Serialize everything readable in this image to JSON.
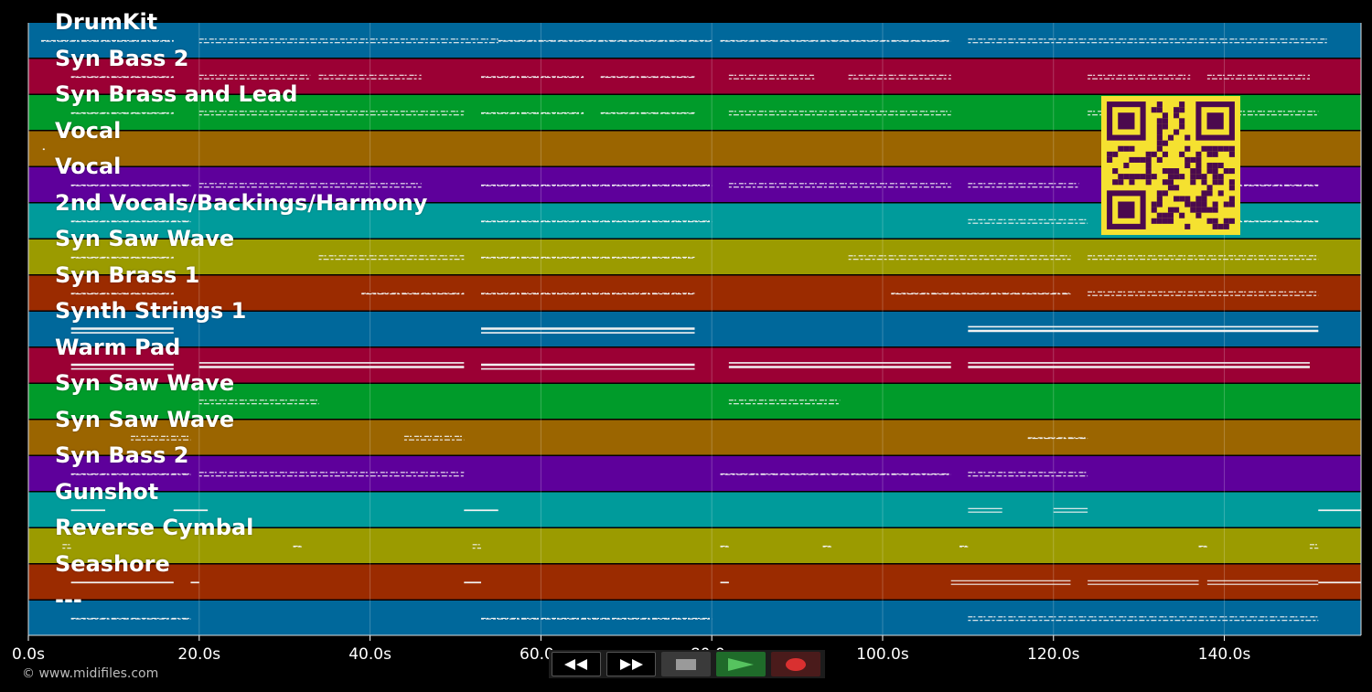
{
  "tracks": [
    {
      "name": "DrumKit",
      "color": "#00689b"
    },
    {
      "name": "Syn Bass 2",
      "color": "#9b0034"
    },
    {
      "name": "Syn Brass and Lead",
      "color": "#009b2a"
    },
    {
      "name": "Vocal",
      "color": "#9b6500"
    },
    {
      "name": "Vocal",
      "color": "#5e009b"
    },
    {
      "name": "2nd Vocals/Backings/Harmony",
      "color": "#009b9b"
    },
    {
      "name": "Syn Saw Wave",
      "color": "#9b9b00"
    },
    {
      "name": "Syn Brass 1",
      "color": "#9b2b00"
    },
    {
      "name": "Synth Strings 1",
      "color": "#00689b"
    },
    {
      "name": "Warm Pad",
      "color": "#9b0034"
    },
    {
      "name": "Syn Saw Wave",
      "color": "#009b2a"
    },
    {
      "name": "Syn Saw Wave",
      "color": "#9b6500"
    },
    {
      "name": "Syn Bass 2",
      "color": "#5e009b"
    },
    {
      "name": "Gunshot",
      "color": "#009b9b"
    },
    {
      "name": "Reverse Cymbal",
      "color": "#9b9b00"
    },
    {
      "name": "Seashore",
      "color": "#9b2b00"
    },
    {
      "name": "---",
      "color": "#00689b"
    }
  ],
  "timeline": {
    "max_seconds": 156,
    "ticks": [
      "0.0s",
      "20.0s",
      "40.0s",
      "60.0s",
      "80.0s",
      "100.0s",
      "120.0s",
      "140.0s"
    ],
    "tick_values": [
      0,
      20,
      40,
      60,
      80,
      100,
      120,
      140
    ]
  },
  "note_segments": [
    [
      [
        1.5,
        17
      ],
      [
        20,
        55
      ],
      [
        55,
        80
      ],
      [
        81,
        108
      ],
      [
        110,
        152
      ]
    ],
    [
      [
        5,
        17
      ],
      [
        20,
        33
      ],
      [
        34,
        46
      ],
      [
        53,
        65
      ],
      [
        67,
        78
      ],
      [
        82,
        92
      ],
      [
        96,
        108
      ],
      [
        124,
        136
      ],
      [
        138,
        150
      ]
    ],
    [
      [
        5,
        17
      ],
      [
        20,
        51
      ],
      [
        53,
        65
      ],
      [
        67,
        78
      ],
      [
        82,
        108
      ],
      [
        124,
        136
      ],
      [
        138,
        151
      ]
    ],
    [
      [
        1.7,
        1.9
      ]
    ],
    [
      [
        5,
        19
      ],
      [
        20,
        46
      ],
      [
        53,
        80
      ],
      [
        82,
        108
      ],
      [
        110,
        123
      ],
      [
        127,
        151
      ]
    ],
    [
      [
        5,
        19
      ],
      [
        53,
        80
      ],
      [
        110,
        124
      ],
      [
        127,
        151
      ]
    ],
    [
      [
        5,
        17
      ],
      [
        34,
        51
      ],
      [
        53,
        78
      ],
      [
        96,
        122
      ],
      [
        124,
        151
      ]
    ],
    [
      [
        5,
        17
      ],
      [
        39,
        51
      ],
      [
        53,
        78
      ],
      [
        101,
        122
      ],
      [
        124,
        151
      ]
    ],
    [
      [
        5,
        17
      ],
      [
        53,
        78
      ],
      [
        110,
        151
      ]
    ],
    [
      [
        5,
        17
      ],
      [
        20,
        51
      ],
      [
        53,
        78
      ],
      [
        82,
        108
      ],
      [
        110,
        150
      ]
    ],
    [
      [
        20,
        34
      ],
      [
        82,
        95
      ]
    ],
    [
      [
        12,
        19
      ],
      [
        44,
        51
      ],
      [
        117,
        124
      ]
    ],
    [
      [
        5,
        19
      ],
      [
        20,
        51
      ],
      [
        81,
        108
      ],
      [
        110,
        124
      ]
    ],
    [
      [
        5,
        9
      ],
      [
        17,
        21
      ],
      [
        51,
        55
      ],
      [
        110,
        114
      ],
      [
        120,
        124
      ],
      [
        151,
        156
      ]
    ],
    [
      [
        4,
        5
      ],
      [
        31,
        32
      ],
      [
        52,
        53
      ],
      [
        81,
        82
      ],
      [
        93,
        94
      ],
      [
        109,
        110
      ],
      [
        137,
        138
      ],
      [
        150,
        151
      ]
    ],
    [
      [
        5,
        17
      ],
      [
        19,
        20
      ],
      [
        51,
        53
      ],
      [
        81,
        82
      ],
      [
        108,
        122
      ],
      [
        124,
        137
      ],
      [
        138,
        151
      ],
      [
        151,
        156
      ]
    ],
    [
      [
        5,
        19
      ],
      [
        53,
        80
      ],
      [
        110,
        151
      ]
    ]
  ],
  "copyright": "© www.midifiles.com",
  "transport": {
    "rewind_icon": "rewind-icon",
    "forward_icon": "fast-forward-icon",
    "stop_icon": "stop-icon",
    "play_icon": "play-icon",
    "record_icon": "record-icon"
  },
  "qr_icon": "qr-code-icon"
}
